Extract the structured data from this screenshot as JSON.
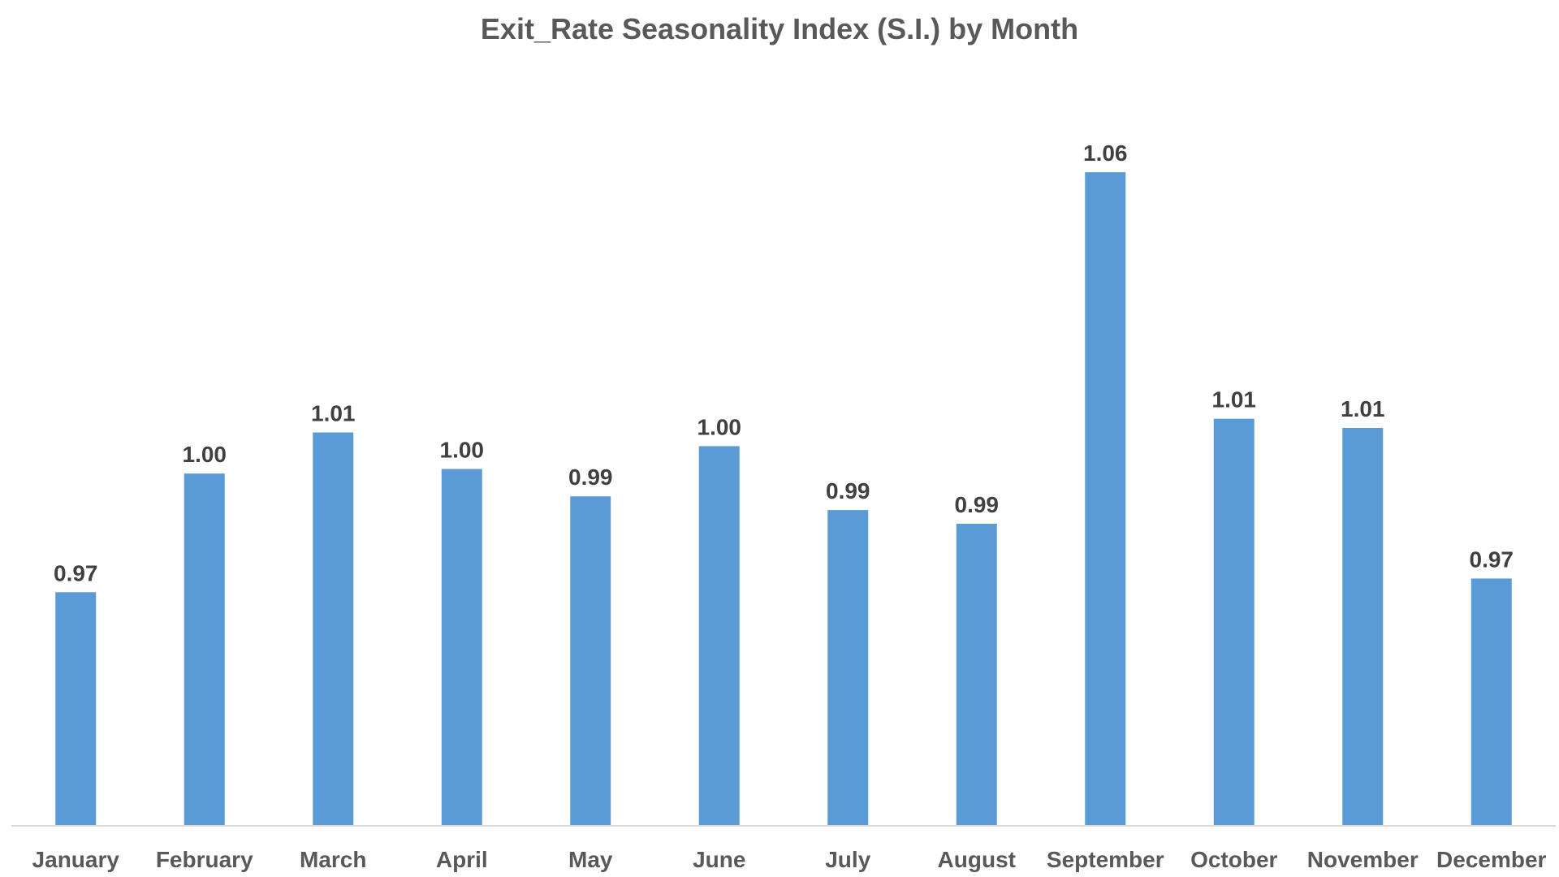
{
  "colors": {
    "bar": "#5B9BD5",
    "axis": "#D9D9D9",
    "title": "#595959",
    "labels": "#404040",
    "background": "#FFFFFF"
  },
  "chart_data": {
    "type": "bar",
    "title": "Exit_Rate Seasonality Index (S.I.) by Month",
    "xlabel": "",
    "ylabel": "",
    "grid": false,
    "legend": "none",
    "categories": [
      "January",
      "February",
      "March",
      "April",
      "May",
      "June",
      "July",
      "August",
      "September",
      "October",
      "November",
      "December"
    ],
    "values": [
      0.971,
      0.997,
      1.006,
      0.998,
      0.992,
      1.003,
      0.989,
      0.986,
      1.063,
      1.009,
      1.007,
      0.974
    ],
    "data_labels": [
      "0.97",
      "1.00",
      "1.01",
      "1.00",
      "0.99",
      "1.00",
      "0.99",
      "0.99",
      "1.06",
      "1.01",
      "1.01",
      "0.97"
    ],
    "ylim": [
      0.92,
      1.068
    ]
  }
}
